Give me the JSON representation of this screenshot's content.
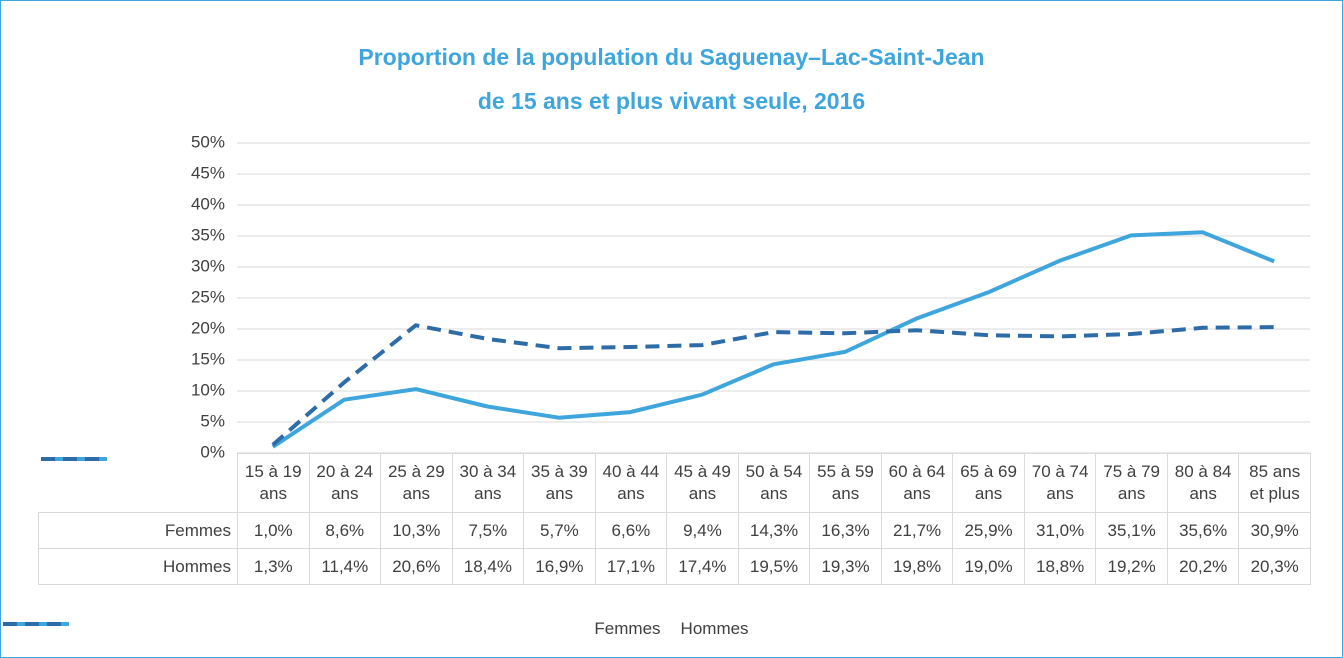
{
  "chart_data": {
    "type": "line",
    "title": [
      "Proportion de la population du Saguenay–Lac-Saint-Jean",
      "de 15 ans et plus vivant seule, 2016"
    ],
    "categories": [
      "15 à 19 ans",
      "20 à 24 ans",
      "25 à 29 ans",
      "30 à 34 ans",
      "35 à 39 ans",
      "40 à 44 ans",
      "45 à 49 ans",
      "50 à 54 ans",
      "55 à 59 ans",
      "60 à 64 ans",
      "65 à 69 ans",
      "70 à 74 ans",
      "75 à 79 ans",
      "80 à 84 ans",
      "85 ans et plus"
    ],
    "series": [
      {
        "name": "Femmes",
        "color": "#3ea6dc",
        "line_style": "solid",
        "values": [
          1.0,
          8.6,
          10.3,
          7.5,
          5.7,
          6.6,
          9.4,
          14.3,
          16.3,
          21.7,
          25.9,
          31.0,
          35.1,
          35.6,
          30.9
        ],
        "value_labels": [
          "1,0%",
          "8,6%",
          "10,3%",
          "7,5%",
          "5,7%",
          "6,6%",
          "9,4%",
          "14,3%",
          "16,3%",
          "21,7%",
          "25,9%",
          "31,0%",
          "35,1%",
          "35,6%",
          "30,9%"
        ]
      },
      {
        "name": "Hommes",
        "color": "#2e6ca8",
        "line_style": "dashed",
        "values": [
          1.3,
          11.4,
          20.6,
          18.4,
          16.9,
          17.1,
          17.4,
          19.5,
          19.3,
          19.8,
          19.0,
          18.8,
          19.2,
          20.2,
          20.3
        ],
        "value_labels": [
          "1,3%",
          "11,4%",
          "20,6%",
          "18,4%",
          "16,9%",
          "17,1%",
          "17,4%",
          "19,5%",
          "19,3%",
          "19,8%",
          "19,0%",
          "18,8%",
          "19,2%",
          "20,2%",
          "20,3%"
        ]
      }
    ],
    "ylim": [
      0,
      50
    ],
    "yticks": [
      {
        "value": 0,
        "label": "0%"
      },
      {
        "value": 5,
        "label": "5%"
      },
      {
        "value": 10,
        "label": "10%"
      },
      {
        "value": 15,
        "label": "15%"
      },
      {
        "value": 20,
        "label": "20%"
      },
      {
        "value": 25,
        "label": "25%"
      },
      {
        "value": 30,
        "label": "30%"
      },
      {
        "value": 35,
        "label": "35%"
      },
      {
        "value": 40,
        "label": "40%"
      },
      {
        "value": 45,
        "label": "45%"
      },
      {
        "value": 50,
        "label": "50%"
      }
    ],
    "grid": true,
    "legend": "bottom"
  }
}
